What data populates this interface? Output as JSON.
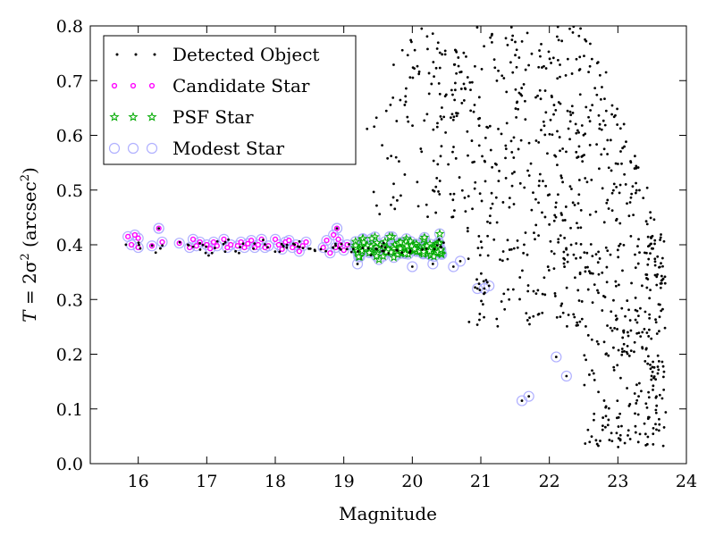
{
  "chart_data": {
    "type": "scatter",
    "title": "",
    "xlabel": "Magnitude",
    "ylabel": "T = 2σ² (arcsec²)",
    "ylabel_parts": {
      "lhs": "T",
      "eq": " = 2σ",
      "sq": "2",
      "unit_open": " (arcsec",
      "unit_close": ")"
    },
    "xlim": [
      15.3,
      24.0
    ],
    "ylim": [
      0.0,
      0.8
    ],
    "xticks": [
      16,
      17,
      18,
      19,
      20,
      21,
      22,
      23,
      24
    ],
    "yticks": [
      0.0,
      0.1,
      0.2,
      0.3,
      0.4,
      0.5,
      0.6,
      0.7,
      0.8
    ],
    "grid": false,
    "legend_position": "top-left",
    "series": [
      {
        "name": "Detected Object",
        "marker": "dot",
        "color": "#000000",
        "generated": {
          "stellar_locus": {
            "x": [
              15.8,
              20.5
            ],
            "y_center": 0.395,
            "y_spread": 0.025,
            "count": 90
          },
          "galaxies": {
            "x": [
              19.3,
              23.7
            ],
            "y": [
              0.0,
              0.8
            ],
            "count": 900
          }
        },
        "points": [
          [
            19.2,
            0.365
          ],
          [
            20.6,
            0.36
          ],
          [
            20.7,
            0.37
          ],
          [
            20.95,
            0.32
          ],
          [
            21.05,
            0.32
          ],
          [
            21.12,
            0.325
          ],
          [
            21.6,
            0.115
          ],
          [
            21.7,
            0.123
          ],
          [
            22.1,
            0.195
          ],
          [
            22.25,
            0.16
          ],
          [
            16.3,
            0.43
          ],
          [
            18.9,
            0.43
          ],
          [
            20.0,
            0.36
          ],
          [
            20.3,
            0.365
          ]
        ]
      },
      {
        "name": "Candidate Star",
        "marker": "circle",
        "color": "#ff00ff",
        "points": [
          [
            15.85,
            0.415
          ],
          [
            15.9,
            0.4
          ],
          [
            15.95,
            0.418
          ],
          [
            16.0,
            0.412
          ],
          [
            16.0,
            0.395
          ],
          [
            16.2,
            0.398
          ],
          [
            16.3,
            0.43
          ],
          [
            16.35,
            0.405
          ],
          [
            16.6,
            0.403
          ],
          [
            16.75,
            0.395
          ],
          [
            16.8,
            0.41
          ],
          [
            16.85,
            0.398
          ],
          [
            16.9,
            0.405
          ],
          [
            17.0,
            0.4
          ],
          [
            17.05,
            0.393
          ],
          [
            17.1,
            0.405
          ],
          [
            17.15,
            0.398
          ],
          [
            17.25,
            0.41
          ],
          [
            17.3,
            0.395
          ],
          [
            17.35,
            0.4
          ],
          [
            17.45,
            0.398
          ],
          [
            17.5,
            0.405
          ],
          [
            17.55,
            0.395
          ],
          [
            17.6,
            0.402
          ],
          [
            17.65,
            0.408
          ],
          [
            17.7,
            0.395
          ],
          [
            17.75,
            0.4
          ],
          [
            17.8,
            0.41
          ],
          [
            17.85,
            0.395
          ],
          [
            17.9,
            0.398
          ],
          [
            18.0,
            0.41
          ],
          [
            18.05,
            0.4
          ],
          [
            18.1,
            0.392
          ],
          [
            18.15,
            0.405
          ],
          [
            18.2,
            0.408
          ],
          [
            18.25,
            0.395
          ],
          [
            18.3,
            0.4
          ],
          [
            18.35,
            0.388
          ],
          [
            18.4,
            0.398
          ],
          [
            18.45,
            0.405
          ],
          [
            18.7,
            0.395
          ],
          [
            18.75,
            0.408
          ],
          [
            18.8,
            0.385
          ],
          [
            18.85,
            0.418
          ],
          [
            18.9,
            0.43
          ],
          [
            18.95,
            0.4
          ],
          [
            19.0,
            0.39
          ],
          [
            18.88,
            0.395
          ],
          [
            18.92,
            0.41
          ],
          [
            19.05,
            0.4
          ]
        ]
      },
      {
        "name": "PSF Star",
        "marker": "star",
        "color": "#00aa00",
        "generated": {
          "x": [
            19.15,
            20.45
          ],
          "y_center": 0.392,
          "y_spread": 0.018,
          "count": 140
        },
        "points": [
          [
            20.4,
            0.42
          ]
        ]
      },
      {
        "name": "Modest Star",
        "marker": "open-circle",
        "color": "#b0b0ff",
        "points": [
          [
            19.2,
            0.365
          ],
          [
            20.6,
            0.36
          ],
          [
            20.7,
            0.37
          ],
          [
            20.95,
            0.32
          ],
          [
            21.05,
            0.32
          ],
          [
            21.12,
            0.325
          ],
          [
            21.6,
            0.115
          ],
          [
            21.7,
            0.123
          ],
          [
            22.1,
            0.195
          ],
          [
            22.25,
            0.16
          ],
          [
            16.3,
            0.43
          ],
          [
            18.9,
            0.43
          ],
          [
            20.0,
            0.36
          ],
          [
            20.3,
            0.365
          ]
        ],
        "also_marks": [
          "Candidate Star",
          "PSF Star"
        ]
      }
    ]
  }
}
